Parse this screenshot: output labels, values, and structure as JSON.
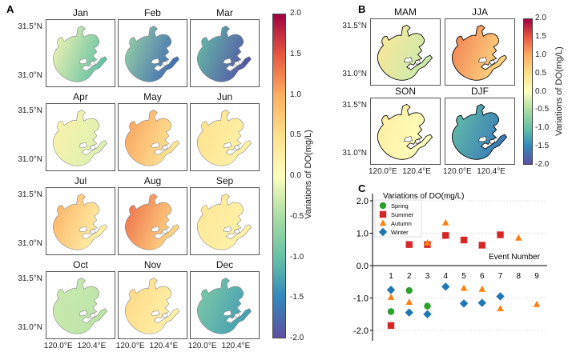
{
  "panel_labels": {
    "a": "A",
    "b": "B",
    "c": "C"
  },
  "axis_ticks": {
    "lat": [
      "31.5°N",
      "31.0°N"
    ],
    "lon": [
      "120.0°E",
      "120.4°E"
    ]
  },
  "colorbar": {
    "label": "Variations of DO(mg/L)",
    "ticks": [
      "2.0",
      "1.5",
      "1.0",
      "0.5",
      "0.0",
      "-0.5",
      "-1.0",
      "-1.5",
      "-2.0"
    ],
    "colormap": "Spectral_r",
    "range": [
      -2,
      2
    ]
  },
  "panelA": {
    "maps": [
      {
        "label": "Jan",
        "west": 0.1,
        "east": -1.0
      },
      {
        "label": "Feb",
        "west": -0.6,
        "east": -1.7
      },
      {
        "label": "Mar",
        "west": -1.0,
        "east": -1.9
      },
      {
        "label": "Apr",
        "west": 0.2,
        "east": -0.2
      },
      {
        "label": "May",
        "west": 1.1,
        "east": 0.4
      },
      {
        "label": "Jun",
        "west": 0.5,
        "east": 0.2
      },
      {
        "label": "Jul",
        "west": 1.0,
        "east": 0.2
      },
      {
        "label": "Aug",
        "west": 1.4,
        "east": 0.6
      },
      {
        "label": "Sep",
        "west": 0.4,
        "east": 0.2
      },
      {
        "label": "Oct",
        "west": -0.3,
        "east": -0.4
      },
      {
        "label": "Nov",
        "west": 0.6,
        "east": 0.2
      },
      {
        "label": "Dec",
        "west": -0.8,
        "east": -1.3
      }
    ]
  },
  "panelB": {
    "maps": [
      {
        "label": "MAM",
        "west": 0.4,
        "east": -0.3
      },
      {
        "label": "JJA",
        "west": 1.3,
        "east": 0.6
      },
      {
        "label": "SON",
        "west": 0.3,
        "east": 0.0
      },
      {
        "label": "DJF",
        "west": -1.0,
        "east": -1.6
      }
    ]
  },
  "chart_data": {
    "type": "scatter",
    "title": "Variations of DO(mg/L)",
    "xlabel": "Event Number",
    "ylabel": "",
    "x_ticks": [
      "1",
      "2",
      "3",
      "4",
      "5",
      "6",
      "7",
      "8",
      "9"
    ],
    "y_ticks": [
      "2.0",
      "1.0",
      "0.0",
      "-1.0",
      "-2.0"
    ],
    "ylim": [
      -2.2,
      2.2
    ],
    "xlim": [
      0,
      9.5
    ],
    "grid": "horizontal dotted",
    "legend": "top-left",
    "series": [
      {
        "name": "Spring",
        "marker": "circle",
        "color": "#2ca02c",
        "points": [
          [
            1,
            -1.42
          ],
          [
            2,
            -0.77
          ],
          [
            3,
            -1.25
          ]
        ]
      },
      {
        "name": "Summer",
        "marker": "square",
        "color": "#d62728",
        "points": [
          [
            1,
            -1.85
          ],
          [
            2,
            0.65
          ],
          [
            3,
            0.65
          ],
          [
            4,
            0.93
          ],
          [
            5,
            0.79
          ],
          [
            6,
            0.63
          ],
          [
            7,
            0.95
          ]
        ]
      },
      {
        "name": "Autumn",
        "marker": "triangle",
        "color": "#ff7f0e",
        "points": [
          [
            1,
            -0.98
          ],
          [
            2,
            -1.13
          ],
          [
            3,
            0.7
          ],
          [
            4,
            1.32
          ],
          [
            5,
            -0.7
          ],
          [
            6,
            -0.73
          ],
          [
            7,
            -1.33
          ],
          [
            8,
            0.85
          ],
          [
            9,
            -1.2
          ]
        ]
      },
      {
        "name": "Winter",
        "marker": "diamond",
        "color": "#1f77b4",
        "points": [
          [
            1,
            -0.75
          ],
          [
            2,
            -1.45
          ],
          [
            3,
            -1.5
          ],
          [
            4,
            -0.65
          ],
          [
            5,
            -1.17
          ],
          [
            6,
            -1.15
          ],
          [
            7,
            -0.95
          ]
        ]
      }
    ]
  }
}
